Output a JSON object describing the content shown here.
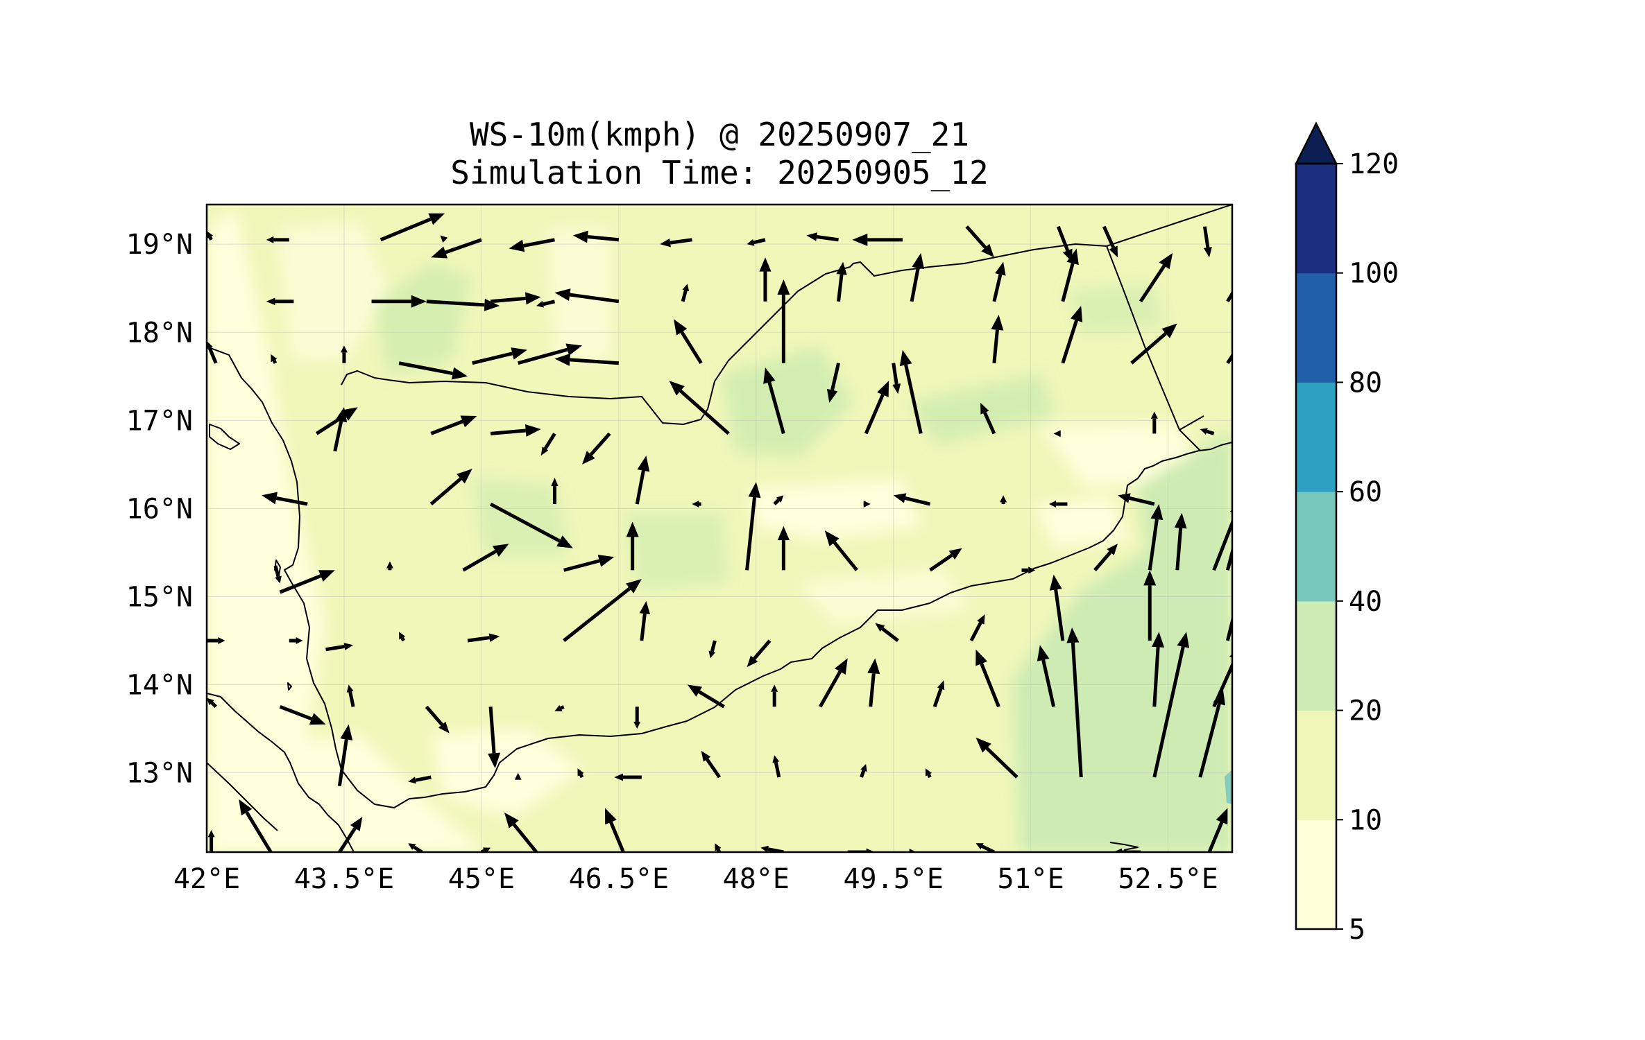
{
  "figure": {
    "title_line1": "WS-10m(kmph) @ 20250907_21",
    "title_line2": "Simulation Time: 20250905_12"
  },
  "map": {
    "lon_range": [
      42.0,
      53.2
    ],
    "lat_range": [
      12.1,
      19.45
    ],
    "x_ticks": [
      {
        "value": 42.0,
        "label": "42°E"
      },
      {
        "value": 43.5,
        "label": "43.5°E"
      },
      {
        "value": 45.0,
        "label": "45°E"
      },
      {
        "value": 46.5,
        "label": "46.5°E"
      },
      {
        "value": 48.0,
        "label": "48°E"
      },
      {
        "value": 49.5,
        "label": "49.5°E"
      },
      {
        "value": 51.0,
        "label": "51°E"
      },
      {
        "value": 52.5,
        "label": "52.5°E"
      }
    ],
    "y_ticks": [
      {
        "value": 19,
        "label": "19°N"
      },
      {
        "value": 18,
        "label": "18°N"
      },
      {
        "value": 17,
        "label": "17°N"
      },
      {
        "value": 16,
        "label": "16°N"
      },
      {
        "value": 15,
        "label": "15°N"
      },
      {
        "value": 14,
        "label": "14°N"
      },
      {
        "value": 13,
        "label": "13°N"
      }
    ],
    "grid": true
  },
  "colorbar": {
    "levels": [
      {
        "value": 5,
        "label": "5"
      },
      {
        "value": 10,
        "label": "10"
      },
      {
        "value": 20,
        "label": "20"
      },
      {
        "value": 40,
        "label": "40"
      },
      {
        "value": 60,
        "label": "60"
      },
      {
        "value": 80,
        "label": "80"
      },
      {
        "value": 100,
        "label": "100"
      },
      {
        "value": 120,
        "label": "120"
      }
    ],
    "colors": [
      "#ffffd9",
      "#eef7b8",
      "#cdebb3",
      "#77c7bc",
      "#2ea0c1",
      "#2160a8",
      "#1c2e80"
    ],
    "extend_color": "#0c1e52",
    "extend": "max"
  },
  "chart_data": {
    "type": "quiver",
    "variable": "WS-10m(kmph)",
    "arrows": [
      [
        42.05,
        19.05,
        -0.05,
        0.1
      ],
      [
        42.9,
        19.05,
        -0.25,
        0
      ],
      [
        43.9,
        19.05,
        0.7,
        0.3
      ],
      [
        44.6,
        19.05,
        -0.05,
        0.05
      ],
      [
        45.0,
        19.05,
        -0.55,
        -0.2
      ],
      [
        45.8,
        19.05,
        -0.5,
        -0.1
      ],
      [
        46.5,
        19.05,
        -0.5,
        0.05
      ],
      [
        47.3,
        19.05,
        -0.35,
        -0.05
      ],
      [
        48.1,
        19.05,
        -0.2,
        -0.05
      ],
      [
        48.9,
        19.05,
        -0.35,
        0.05
      ],
      [
        49.6,
        19.05,
        -0.55,
        0
      ],
      [
        50.3,
        19.2,
        0.3,
        -0.35
      ],
      [
        51.3,
        19.2,
        0.15,
        -0.4
      ],
      [
        51.8,
        19.2,
        0.15,
        -0.35
      ],
      [
        52.9,
        19.2,
        0.05,
        -0.35
      ],
      [
        42.95,
        18.35,
        -0.3,
        0
      ],
      [
        43.8,
        18.35,
        0.6,
        0
      ],
      [
        44.4,
        18.35,
        0.8,
        -0.05
      ],
      [
        45.1,
        18.35,
        0.55,
        0.05
      ],
      [
        45.8,
        18.35,
        -0.2,
        -0.05
      ],
      [
        46.5,
        18.35,
        -0.7,
        0.1
      ],
      [
        47.2,
        18.35,
        0.05,
        0.2
      ],
      [
        48.1,
        18.35,
        0,
        0.5
      ],
      [
        48.9,
        18.35,
        0.05,
        0.45
      ],
      [
        49.7,
        18.35,
        0.1,
        0.55
      ],
      [
        50.6,
        18.35,
        0.1,
        0.45
      ],
      [
        51.35,
        18.35,
        0.15,
        0.6
      ],
      [
        52.2,
        18.35,
        0.35,
        0.55
      ],
      [
        53.15,
        18.35,
        0.2,
        0.35
      ],
      [
        42.1,
        17.65,
        -0.1,
        0.25
      ],
      [
        42.75,
        17.65,
        -0.05,
        0.1
      ],
      [
        43.5,
        17.65,
        0,
        0.2
      ],
      [
        44.1,
        17.65,
        0.75,
        -0.15
      ],
      [
        44.9,
        17.65,
        0.6,
        0.15
      ],
      [
        45.4,
        17.65,
        0.7,
        0.2
      ],
      [
        46.5,
        17.65,
        -0.7,
        0.05
      ],
      [
        47.4,
        17.65,
        -0.3,
        0.5
      ],
      [
        48.3,
        17.65,
        0,
        0.95
      ],
      [
        48.9,
        17.65,
        -0.1,
        -0.45
      ],
      [
        49.5,
        17.65,
        0.05,
        -0.35
      ],
      [
        50.6,
        17.65,
        0.05,
        0.55
      ],
      [
        51.35,
        17.65,
        0.2,
        0.65
      ],
      [
        52.1,
        17.65,
        0.5,
        0.45
      ],
      [
        53.15,
        17.65,
        0.25,
        0.4
      ],
      [
        43.4,
        16.65,
        0.1,
        0.5
      ],
      [
        43.2,
        16.85,
        0.45,
        0.3
      ],
      [
        44.45,
        16.85,
        0.5,
        0.2
      ],
      [
        45.1,
        16.85,
        0.55,
        0.05
      ],
      [
        45.8,
        16.85,
        -0.15,
        -0.25
      ],
      [
        46.4,
        16.85,
        -0.3,
        -0.35
      ],
      [
        47.7,
        16.85,
        -0.65,
        0.6
      ],
      [
        48.3,
        16.85,
        -0.2,
        0.75
      ],
      [
        49.2,
        16.85,
        0.25,
        0.6
      ],
      [
        49.8,
        16.85,
        -0.2,
        0.95
      ],
      [
        50.6,
        16.85,
        -0.15,
        0.35
      ],
      [
        51.3,
        16.85,
        -0.05,
        0
      ],
      [
        52.35,
        16.85,
        0,
        0.25
      ],
      [
        53.0,
        16.85,
        -0.15,
        0.05
      ],
      [
        43.1,
        16.05,
        -0.5,
        0.1
      ],
      [
        44.45,
        16.05,
        0.45,
        0.4
      ],
      [
        45.1,
        16.05,
        0.9,
        -0.5
      ],
      [
        45.8,
        16.05,
        0,
        0.3
      ],
      [
        46.7,
        16.05,
        0.1,
        0.55
      ],
      [
        47.4,
        16.05,
        -0.1,
        0
      ],
      [
        48.2,
        16.05,
        0.1,
        0.1
      ],
      [
        49.2,
        16.05,
        0.05,
        0
      ],
      [
        49.9,
        16.05,
        -0.4,
        0.1
      ],
      [
        50.7,
        16.05,
        0,
        0.1
      ],
      [
        51.4,
        16.05,
        -0.2,
        0
      ],
      [
        52.35,
        16.05,
        -0.4,
        0.1
      ],
      [
        42.75,
        15.35,
        0.05,
        -0.2
      ],
      [
        42.8,
        15.05,
        0.6,
        0.25
      ],
      [
        44.0,
        15.3,
        0,
        0.1
      ],
      [
        44.8,
        15.3,
        0.5,
        0.3
      ],
      [
        45.9,
        15.3,
        0.55,
        0.15
      ],
      [
        46.65,
        15.3,
        0,
        0.55
      ],
      [
        47.9,
        15.3,
        0.1,
        1.0
      ],
      [
        48.3,
        15.3,
        0,
        0.5
      ],
      [
        49.1,
        15.3,
        -0.35,
        0.45
      ],
      [
        49.9,
        15.3,
        0.35,
        0.25
      ],
      [
        50.9,
        15.3,
        0.15,
        0
      ],
      [
        51.7,
        15.3,
        0.25,
        0.3
      ],
      [
        52.3,
        15.3,
        0.1,
        0.75
      ],
      [
        52.6,
        15.3,
        0.05,
        0.65
      ],
      [
        53.0,
        15.3,
        0.3,
        0.8
      ],
      [
        53.15,
        15.3,
        0.15,
        0.6
      ],
      [
        42.0,
        14.5,
        0.2,
        0
      ],
      [
        42.9,
        14.5,
        0.15,
        0
      ],
      [
        43.3,
        14.4,
        0.3,
        0.05
      ],
      [
        44.15,
        14.5,
        -0.05,
        0.1
      ],
      [
        44.85,
        14.5,
        0.35,
        0.05
      ],
      [
        45.9,
        14.5,
        0.85,
        0.7
      ],
      [
        46.75,
        14.5,
        0.05,
        0.45
      ],
      [
        47.55,
        14.5,
        -0.05,
        -0.2
      ],
      [
        48.15,
        14.5,
        -0.25,
        -0.3
      ],
      [
        49.55,
        14.5,
        -0.25,
        0.2
      ],
      [
        50.35,
        14.5,
        0.15,
        0.3
      ],
      [
        51.35,
        14.5,
        -0.1,
        0.75
      ],
      [
        52.3,
        14.5,
        0,
        0.8
      ],
      [
        53.15,
        14.5,
        0.2,
        0.85
      ],
      [
        42.1,
        13.75,
        -0.1,
        0.1
      ],
      [
        42.8,
        13.75,
        0.5,
        -0.2
      ],
      [
        43.6,
        13.75,
        -0.05,
        0.25
      ],
      [
        44.4,
        13.75,
        0.25,
        -0.3
      ],
      [
        45.1,
        13.75,
        0.05,
        -0.7
      ],
      [
        45.9,
        13.75,
        -0.1,
        -0.05
      ],
      [
        46.7,
        13.75,
        0,
        -0.25
      ],
      [
        47.65,
        13.75,
        -0.4,
        0.25
      ],
      [
        48.2,
        13.75,
        0,
        0.25
      ],
      [
        48.7,
        13.75,
        0.3,
        0.55
      ],
      [
        49.25,
        13.75,
        0.05,
        0.55
      ],
      [
        49.95,
        13.75,
        0.1,
        0.3
      ],
      [
        50.65,
        13.75,
        -0.25,
        0.65
      ],
      [
        51.25,
        13.75,
        -0.15,
        0.7
      ],
      [
        52.35,
        13.75,
        0.05,
        0.85
      ],
      [
        53.0,
        13.75,
        0.3,
        0.7
      ],
      [
        43.45,
        12.85,
        0.1,
        0.7
      ],
      [
        44.45,
        12.95,
        -0.25,
        -0.05
      ],
      [
        45.4,
        12.95,
        0,
        0.05
      ],
      [
        46.1,
        12.95,
        -0.05,
        0.1
      ],
      [
        46.75,
        12.95,
        -0.3,
        0
      ],
      [
        47.6,
        12.95,
        -0.2,
        0.3
      ],
      [
        48.25,
        12.95,
        -0.05,
        0.25
      ],
      [
        49.15,
        12.95,
        0.05,
        0.15
      ],
      [
        49.9,
        12.95,
        -0.05,
        0.1
      ],
      [
        50.85,
        12.95,
        -0.45,
        0.45
      ],
      [
        51.55,
        12.95,
        -0.1,
        1.7
      ],
      [
        52.35,
        12.95,
        0.35,
        1.65
      ],
      [
        52.85,
        12.95,
        0.25,
        1.0
      ],
      [
        42.05,
        12.1,
        0,
        0.25
      ],
      [
        42.7,
        12.1,
        -0.35,
        0.6
      ],
      [
        43.45,
        12.1,
        0.25,
        0.4
      ],
      [
        44.35,
        12.1,
        -0.15,
        0.1
      ],
      [
        45.0,
        12.1,
        0.1,
        0.05
      ],
      [
        45.6,
        12.1,
        -0.35,
        0.45
      ],
      [
        46.55,
        12.1,
        -0.2,
        0.5
      ],
      [
        47.6,
        12.1,
        -0.05,
        0.1
      ],
      [
        48.3,
        12.1,
        -0.25,
        0.05
      ],
      [
        49.0,
        12.1,
        0.3,
        0
      ],
      [
        49.7,
        12.1,
        0.05,
        0
      ],
      [
        50.6,
        12.1,
        -0.2,
        0.1
      ],
      [
        52.2,
        12.1,
        -0.3,
        0
      ],
      [
        52.95,
        12.1,
        0.2,
        0.5
      ]
    ]
  }
}
